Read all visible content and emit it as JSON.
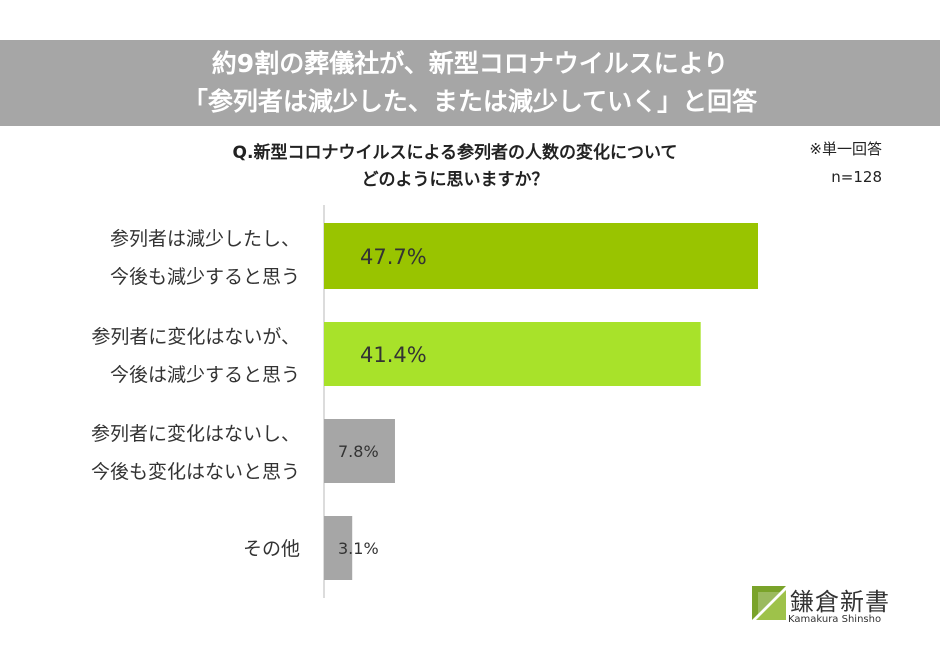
{
  "banner": {
    "line1": "約9割の葬儀社が、新型コロナウイルスにより",
    "line2": "「参列者は減少した、または減少していく」と回答"
  },
  "question": {
    "line1": "Q.新型コロナウイルスによる参列者の人数の変化について",
    "line2": "どのように思いますか？"
  },
  "notes": {
    "answer_type": "※単一回答",
    "sample": "n=128"
  },
  "logo": {
    "name": "鎌倉新書",
    "sub": "Kamakura Shinsho"
  },
  "colors": {
    "bar1": "#99c400",
    "bar2": "#a8e22a",
    "bar_other": "#a6a6a6",
    "axis": "#d0d0d0"
  },
  "chart_data": {
    "type": "bar",
    "orientation": "horizontal",
    "categories": [
      [
        "参列者は減少したし、",
        "今後も減少すると思う"
      ],
      [
        "参列者に変化はないが、",
        "今後は減少すると思う"
      ],
      [
        "参列者に変化はないし、",
        "今後も変化はないと思う"
      ],
      [
        "その他"
      ]
    ],
    "values": [
      47.7,
      41.4,
      7.8,
      3.1
    ],
    "value_labels": [
      "47.7%",
      "41.4%",
      "7.8%",
      "3.1%"
    ],
    "unit": "%",
    "xlim": [
      0,
      50
    ],
    "grid": false
  }
}
